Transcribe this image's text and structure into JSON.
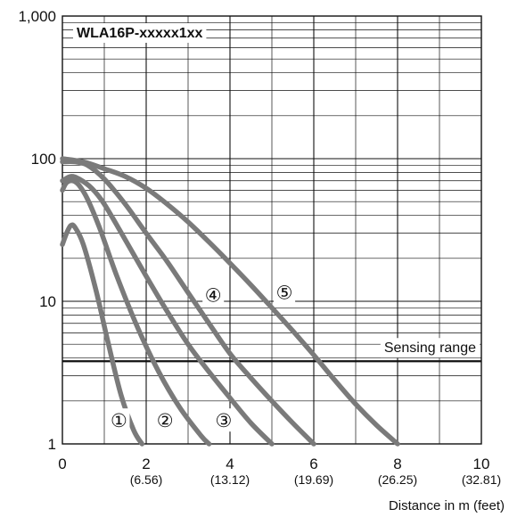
{
  "chart_data": {
    "type": "line",
    "title": "WLA16P-xxxxx1xx",
    "xlabel": "Distance in m (feet)",
    "ylabel": "",
    "x_scale": "linear",
    "y_scale": "log",
    "xlim": [
      0,
      10
    ],
    "ylim": [
      1,
      1000
    ],
    "grid": true,
    "x_ticks": [
      {
        "value": 0,
        "label": "0",
        "sub": ""
      },
      {
        "value": 2,
        "label": "2",
        "sub": "(6.56)"
      },
      {
        "value": 4,
        "label": "4",
        "sub": "(13.12)"
      },
      {
        "value": 6,
        "label": "6",
        "sub": "(19.69)"
      },
      {
        "value": 8,
        "label": "8",
        "sub": "(26.25)"
      },
      {
        "value": 10,
        "label": "10",
        "sub": "(32.81)"
      }
    ],
    "y_ticks": [
      {
        "value": 1,
        "label": "1"
      },
      {
        "value": 10,
        "label": "10"
      },
      {
        "value": 100,
        "label": "100"
      },
      {
        "value": 1000,
        "label": "1,000"
      }
    ],
    "sensing_range": {
      "value": 3.8,
      "label": "Sensing range"
    },
    "series": [
      {
        "name": "①",
        "label_pos": {
          "x": 1.35,
          "y": 1.45
        },
        "x": [
          0,
          0.1,
          0.2,
          0.3,
          0.5,
          0.8,
          1.1,
          1.4,
          1.7,
          1.9
        ],
        "y": [
          25,
          30,
          34,
          33,
          25,
          12,
          5,
          2.2,
          1.25,
          1
        ]
      },
      {
        "name": "②",
        "label_pos": {
          "x": 2.45,
          "y": 1.45
        },
        "x": [
          0,
          0.1,
          0.25,
          0.4,
          0.6,
          0.9,
          1.3,
          1.8,
          2.3,
          2.8,
          3.3,
          3.5
        ],
        "y": [
          60,
          68,
          70,
          65,
          52,
          32,
          15,
          6.5,
          3.2,
          1.8,
          1.15,
          1
        ]
      },
      {
        "name": "③",
        "label_pos": {
          "x": 3.85,
          "y": 1.45
        },
        "x": [
          0,
          0.2,
          0.4,
          0.7,
          1.0,
          1.5,
          2.0,
          2.5,
          3.0,
          3.5,
          4.0,
          4.5,
          5.0
        ],
        "y": [
          70,
          75,
          72,
          62,
          48,
          27,
          15,
          8.5,
          5,
          3.2,
          2.1,
          1.4,
          1
        ]
      },
      {
        "name": "④",
        "label_pos": {
          "x": 3.6,
          "y": 11
        },
        "x": [
          0,
          0.3,
          0.6,
          1.0,
          1.5,
          2.0,
          2.5,
          3.0,
          3.5,
          4.0,
          4.5,
          5.0,
          5.5,
          6.0
        ],
        "y": [
          95,
          95,
          90,
          72,
          48,
          30,
          19,
          11.5,
          7,
          4.3,
          2.9,
          2,
          1.4,
          1
        ]
      },
      {
        "name": "⑤",
        "label_pos": {
          "x": 5.3,
          "y": 11.5
        },
        "x": [
          0,
          0.5,
          1.0,
          1.5,
          2.0,
          2.5,
          3.0,
          3.5,
          4.0,
          4.5,
          5.0,
          5.5,
          6.0,
          6.5,
          7.0,
          7.5,
          8.0
        ],
        "y": [
          100,
          95,
          85,
          75,
          62,
          48,
          36,
          26,
          18.5,
          13,
          9,
          6.2,
          4.2,
          2.8,
          1.9,
          1.35,
          1
        ]
      }
    ]
  }
}
